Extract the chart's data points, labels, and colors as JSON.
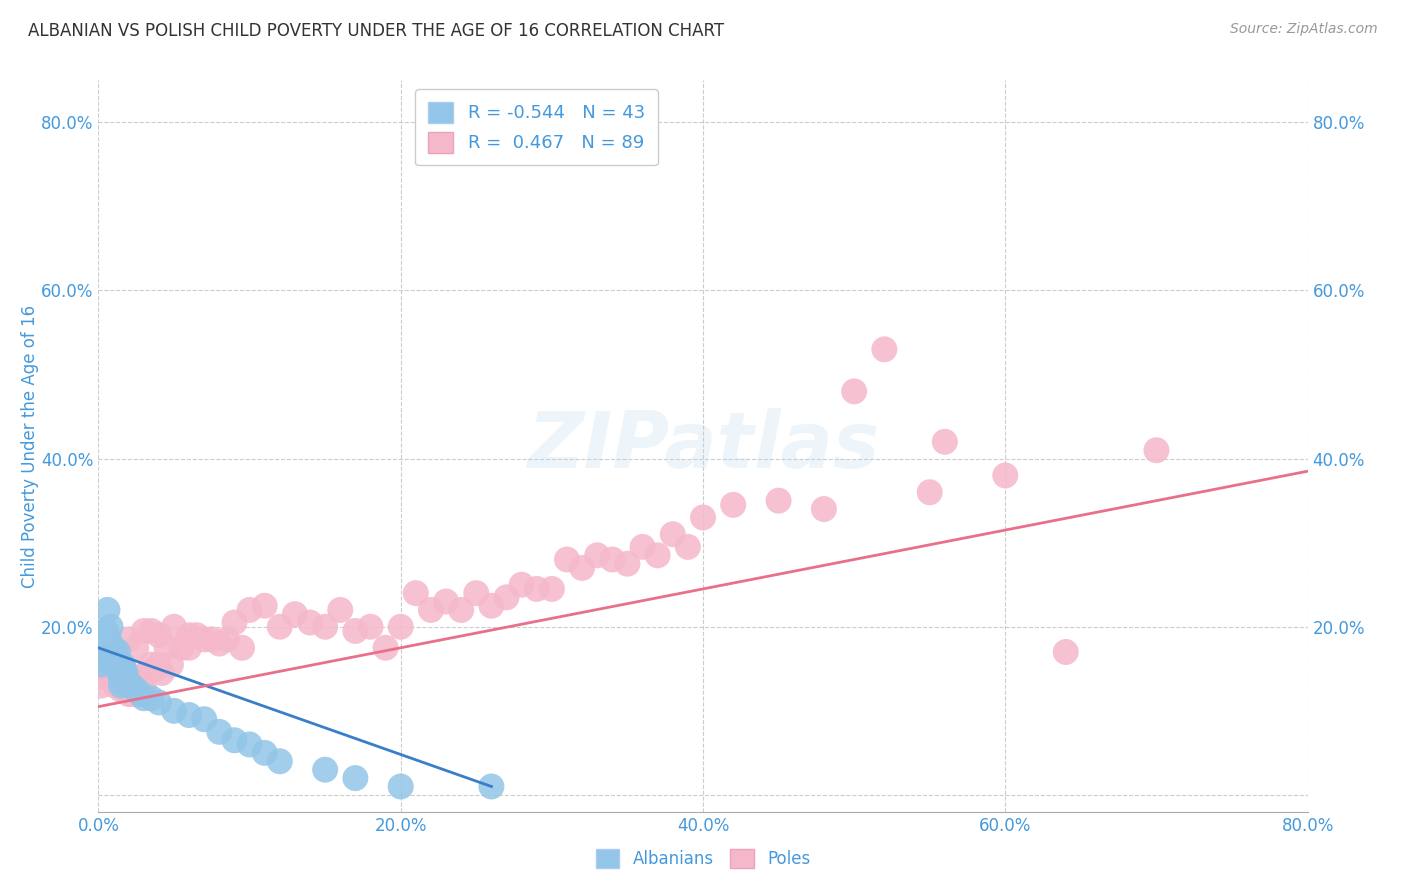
{
  "title": "ALBANIAN VS POLISH CHILD POVERTY UNDER THE AGE OF 16 CORRELATION CHART",
  "source": "Source: ZipAtlas.com",
  "ylabel": "Child Poverty Under the Age of 16",
  "xlim": [
    0.0,
    0.8
  ],
  "ylim": [
    -0.02,
    0.85
  ],
  "xticks": [
    0.0,
    0.2,
    0.4,
    0.6,
    0.8
  ],
  "xticklabels": [
    "0.0%",
    "20.0%",
    "40.0%",
    "60.0%",
    "80.0%"
  ],
  "yticks": [
    0.0,
    0.2,
    0.4,
    0.6,
    0.8
  ],
  "yticklabels": [
    "",
    "20.0%",
    "40.0%",
    "60.0%",
    "80.0%"
  ],
  "albanian_color": "#92C5E8",
  "polish_color": "#F5B8CB",
  "albanian_line_color": "#3A7DC9",
  "polish_line_color": "#E8708A",
  "albanian_R": -0.544,
  "albanian_N": 43,
  "polish_R": 0.467,
  "polish_N": 89,
  "background_color": "#FFFFFF",
  "grid_color": "#CCCCCC",
  "axis_color": "#4499DD",
  "albanian_x": [
    0.002,
    0.003,
    0.004,
    0.005,
    0.006,
    0.007,
    0.007,
    0.008,
    0.009,
    0.01,
    0.01,
    0.011,
    0.012,
    0.012,
    0.013,
    0.014,
    0.014,
    0.015,
    0.015,
    0.016,
    0.016,
    0.017,
    0.018,
    0.019,
    0.02,
    0.022,
    0.025,
    0.028,
    0.03,
    0.035,
    0.04,
    0.05,
    0.06,
    0.07,
    0.08,
    0.09,
    0.1,
    0.11,
    0.12,
    0.15,
    0.17,
    0.2,
    0.26
  ],
  "albanian_y": [
    0.155,
    0.175,
    0.16,
    0.195,
    0.22,
    0.185,
    0.165,
    0.2,
    0.17,
    0.155,
    0.175,
    0.165,
    0.155,
    0.16,
    0.17,
    0.15,
    0.145,
    0.135,
    0.13,
    0.155,
    0.14,
    0.15,
    0.145,
    0.135,
    0.13,
    0.13,
    0.125,
    0.12,
    0.115,
    0.115,
    0.11,
    0.1,
    0.095,
    0.09,
    0.075,
    0.065,
    0.06,
    0.05,
    0.04,
    0.03,
    0.02,
    0.01,
    0.01
  ],
  "polish_x": [
    0.002,
    0.003,
    0.004,
    0.005,
    0.006,
    0.007,
    0.008,
    0.009,
    0.01,
    0.01,
    0.011,
    0.012,
    0.013,
    0.014,
    0.015,
    0.016,
    0.017,
    0.018,
    0.019,
    0.02,
    0.02,
    0.022,
    0.024,
    0.025,
    0.025,
    0.028,
    0.03,
    0.03,
    0.032,
    0.035,
    0.035,
    0.038,
    0.04,
    0.04,
    0.042,
    0.045,
    0.048,
    0.05,
    0.055,
    0.06,
    0.06,
    0.065,
    0.07,
    0.075,
    0.08,
    0.085,
    0.09,
    0.095,
    0.1,
    0.11,
    0.12,
    0.13,
    0.14,
    0.15,
    0.16,
    0.17,
    0.18,
    0.19,
    0.2,
    0.21,
    0.22,
    0.23,
    0.24,
    0.25,
    0.26,
    0.27,
    0.28,
    0.29,
    0.3,
    0.31,
    0.32,
    0.33,
    0.34,
    0.35,
    0.36,
    0.37,
    0.38,
    0.39,
    0.4,
    0.42,
    0.45,
    0.48,
    0.5,
    0.52,
    0.55,
    0.56,
    0.6,
    0.64,
    0.7
  ],
  "polish_y": [
    0.13,
    0.15,
    0.14,
    0.165,
    0.155,
    0.15,
    0.145,
    0.16,
    0.145,
    0.155,
    0.13,
    0.135,
    0.15,
    0.14,
    0.125,
    0.145,
    0.15,
    0.13,
    0.14,
    0.12,
    0.185,
    0.12,
    0.12,
    0.175,
    0.13,
    0.14,
    0.13,
    0.195,
    0.145,
    0.155,
    0.195,
    0.15,
    0.155,
    0.19,
    0.145,
    0.175,
    0.155,
    0.2,
    0.175,
    0.19,
    0.175,
    0.19,
    0.185,
    0.185,
    0.18,
    0.185,
    0.205,
    0.175,
    0.22,
    0.225,
    0.2,
    0.215,
    0.205,
    0.2,
    0.22,
    0.195,
    0.2,
    0.175,
    0.2,
    0.24,
    0.22,
    0.23,
    0.22,
    0.24,
    0.225,
    0.235,
    0.25,
    0.245,
    0.245,
    0.28,
    0.27,
    0.285,
    0.28,
    0.275,
    0.295,
    0.285,
    0.31,
    0.295,
    0.33,
    0.345,
    0.35,
    0.34,
    0.48,
    0.53,
    0.36,
    0.42,
    0.38,
    0.17,
    0.41
  ],
  "albanian_line_x": [
    0.0,
    0.26
  ],
  "albanian_line_y": [
    0.175,
    0.01
  ],
  "polish_line_x": [
    0.0,
    0.8
  ],
  "polish_line_y": [
    0.105,
    0.385
  ]
}
